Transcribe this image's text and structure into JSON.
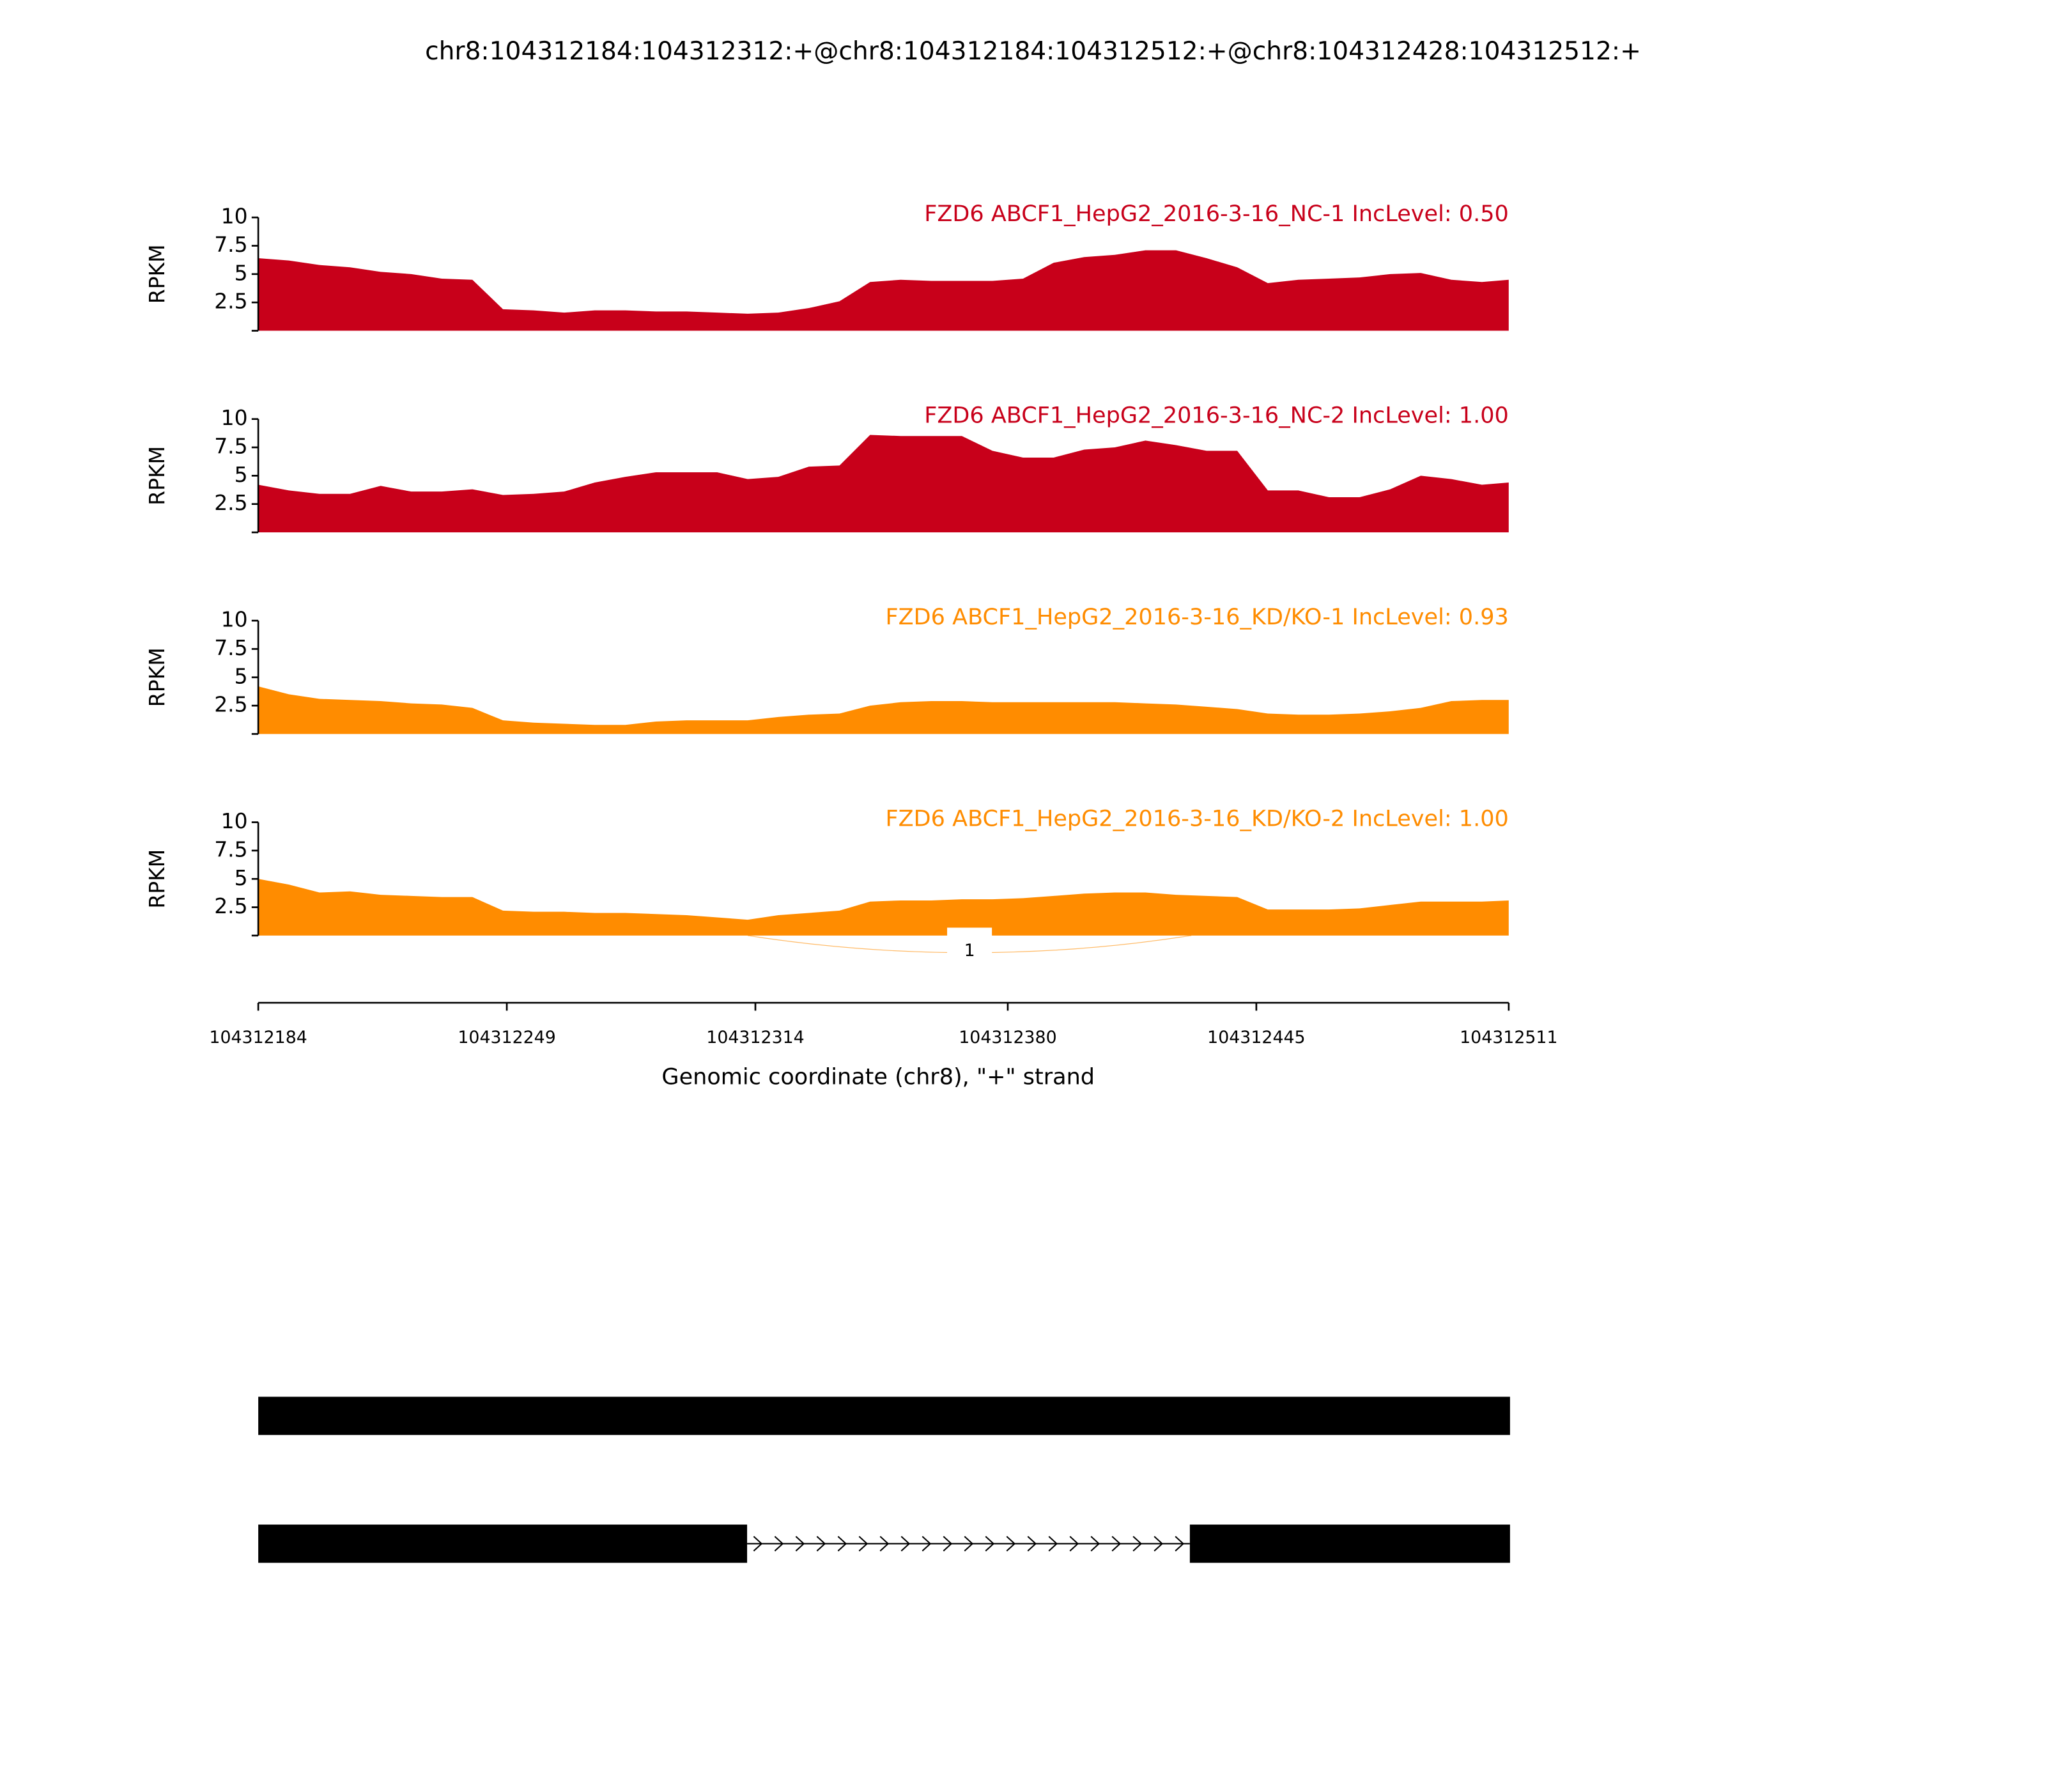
{
  "title": "chr8:104312184:104312312:+@chr8:104312184:104312512:+@chr8:104312428:104312512:+",
  "chart_data": [
    {
      "type": "area",
      "title": "FZD6 ABCF1_HepG2_2016-3-16_NC-1 IncLevel: 0.50",
      "ylabel": "RPKM",
      "color": "#c8001a",
      "xlim": [
        104312184,
        104312511
      ],
      "ylim": [
        0,
        10
      ],
      "yticks": [
        2.5,
        5,
        7.5,
        10
      ],
      "x": [
        104312184,
        104312192,
        104312200,
        104312208,
        104312216,
        104312224,
        104312232,
        104312240,
        104312248,
        104312256,
        104312264,
        104312272,
        104312280,
        104312288,
        104312296,
        104312304,
        104312312,
        104312320,
        104312328,
        104312336,
        104312344,
        104312352,
        104312360,
        104312368,
        104312376,
        104312384,
        104312392,
        104312400,
        104312408,
        104312416,
        104312424,
        104312432,
        104312440,
        104312448,
        104312456,
        104312464,
        104312472,
        104312480,
        104312488,
        104312496,
        104312504,
        104312511
      ],
      "values": [
        6.4,
        6.2,
        5.8,
        5.6,
        5.2,
        5.0,
        4.6,
        4.5,
        1.9,
        1.8,
        1.6,
        1.8,
        1.8,
        1.7,
        1.7,
        1.6,
        1.5,
        1.6,
        2.0,
        2.6,
        4.3,
        4.5,
        4.4,
        4.4,
        4.4,
        4.6,
        6.0,
        6.5,
        6.7,
        7.1,
        7.1,
        6.4,
        5.6,
        4.2,
        4.5,
        4.6,
        4.7,
        5.0,
        5.1,
        4.5,
        4.3,
        4.5
      ]
    },
    {
      "type": "area",
      "title": "FZD6 ABCF1_HepG2_2016-3-16_NC-2 IncLevel: 1.00",
      "ylabel": "RPKM",
      "color": "#c8001a",
      "xlim": [
        104312184,
        104312511
      ],
      "ylim": [
        0,
        10
      ],
      "yticks": [
        2.5,
        5,
        7.5,
        10
      ],
      "x": [
        104312184,
        104312192,
        104312200,
        104312208,
        104312216,
        104312224,
        104312232,
        104312240,
        104312248,
        104312256,
        104312264,
        104312272,
        104312280,
        104312288,
        104312296,
        104312304,
        104312312,
        104312320,
        104312328,
        104312336,
        104312344,
        104312352,
        104312360,
        104312368,
        104312376,
        104312384,
        104312392,
        104312400,
        104312408,
        104312416,
        104312424,
        104312432,
        104312440,
        104312448,
        104312456,
        104312464,
        104312472,
        104312480,
        104312488,
        104312496,
        104312504,
        104312511
      ],
      "values": [
        4.2,
        3.7,
        3.4,
        3.4,
        4.1,
        3.6,
        3.6,
        3.8,
        3.3,
        3.4,
        3.6,
        4.4,
        4.9,
        5.3,
        5.3,
        5.3,
        4.7,
        4.9,
        5.8,
        5.9,
        8.6,
        8.5,
        8.5,
        8.5,
        7.2,
        6.6,
        6.6,
        7.3,
        7.5,
        8.1,
        7.7,
        7.2,
        7.2,
        3.7,
        3.7,
        3.1,
        3.1,
        3.8,
        5.0,
        4.7,
        4.2,
        4.4
      ]
    },
    {
      "type": "area",
      "title": "FZD6 ABCF1_HepG2_2016-3-16_KD/KO-1 IncLevel: 0.93",
      "ylabel": "RPKM",
      "color": "#ff8c00",
      "xlim": [
        104312184,
        104312511
      ],
      "ylim": [
        0,
        10
      ],
      "yticks": [
        2.5,
        5,
        7.5,
        10
      ],
      "x": [
        104312184,
        104312192,
        104312200,
        104312208,
        104312216,
        104312224,
        104312232,
        104312240,
        104312248,
        104312256,
        104312264,
        104312272,
        104312280,
        104312288,
        104312296,
        104312304,
        104312312,
        104312320,
        104312328,
        104312336,
        104312344,
        104312352,
        104312360,
        104312368,
        104312376,
        104312384,
        104312392,
        104312400,
        104312408,
        104312416,
        104312424,
        104312432,
        104312440,
        104312448,
        104312456,
        104312464,
        104312472,
        104312480,
        104312488,
        104312496,
        104312504,
        104312511
      ],
      "values": [
        4.2,
        3.5,
        3.1,
        3.0,
        2.9,
        2.7,
        2.6,
        2.3,
        1.2,
        1.0,
        0.9,
        0.8,
        0.8,
        1.1,
        1.2,
        1.2,
        1.2,
        1.5,
        1.7,
        1.8,
        2.5,
        2.8,
        2.9,
        2.9,
        2.8,
        2.8,
        2.8,
        2.8,
        2.8,
        2.7,
        2.6,
        2.4,
        2.2,
        1.8,
        1.7,
        1.7,
        1.8,
        2.0,
        2.3,
        2.9,
        3.0,
        3.0
      ]
    },
    {
      "type": "area",
      "title": "FZD6 ABCF1_HepG2_2016-3-16_KD/KO-2 IncLevel: 1.00",
      "ylabel": "RPKM",
      "color": "#ff8c00",
      "xlim": [
        104312184,
        104312511
      ],
      "ylim": [
        0,
        10
      ],
      "yticks": [
        2.5,
        5,
        7.5,
        10
      ],
      "x": [
        104312184,
        104312192,
        104312200,
        104312208,
        104312216,
        104312224,
        104312232,
        104312240,
        104312248,
        104312256,
        104312264,
        104312272,
        104312280,
        104312288,
        104312296,
        104312304,
        104312312,
        104312320,
        104312328,
        104312336,
        104312344,
        104312352,
        104312360,
        104312368,
        104312376,
        104312384,
        104312392,
        104312400,
        104312408,
        104312416,
        104312424,
        104312432,
        104312440,
        104312448,
        104312456,
        104312464,
        104312472,
        104312480,
        104312488,
        104312496,
        104312504,
        104312511
      ],
      "values": [
        5.0,
        4.5,
        3.8,
        3.9,
        3.6,
        3.5,
        3.4,
        3.4,
        2.2,
        2.1,
        2.1,
        2.0,
        2.0,
        1.9,
        1.8,
        1.6,
        1.4,
        1.8,
        2.0,
        2.2,
        3.0,
        3.1,
        3.1,
        3.2,
        3.2,
        3.3,
        3.5,
        3.7,
        3.8,
        3.8,
        3.6,
        3.5,
        3.4,
        2.3,
        2.3,
        2.3,
        2.4,
        2.7,
        3.0,
        3.0,
        3.0,
        3.1
      ],
      "junctions": [
        {
          "start": 104312312,
          "end": 104312428,
          "count": 1
        }
      ],
      "xticks": [
        104312184,
        104312249,
        104312314,
        104312380,
        104312445,
        104312511
      ],
      "xlabel": "Genomic coordinate (chr8), \"+\" strand"
    }
  ]
}
